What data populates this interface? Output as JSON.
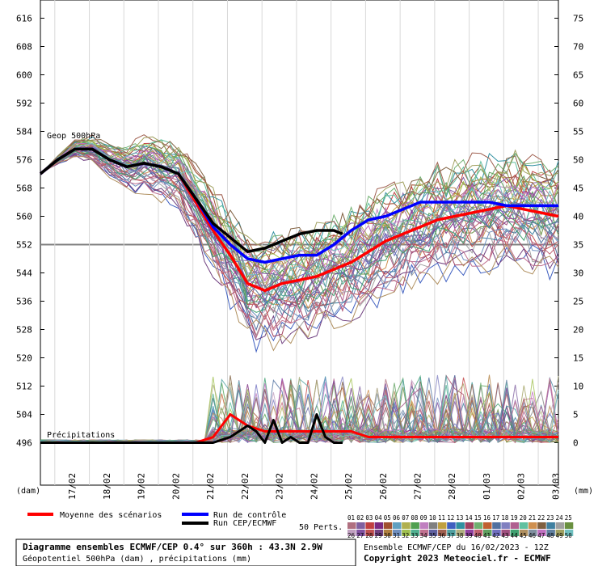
{
  "chart_data": {
    "type": "line",
    "title": "Diagramme ensembles ECMWF/CEP 0.4° sur 360h : 43.3N 2.9W",
    "subtitle": "Géopotentiel 500hPa (dam) , précipitations (mm)",
    "run_info": "Ensemble ECMWF/CEP du 16/02/2023 - 12Z",
    "copyright": "Copyright 2023 Meteociel.fr - ECMWF",
    "left_axis": {
      "unit_label": "(dam)",
      "ticks": [
        616,
        608,
        600,
        592,
        584,
        576,
        568,
        560,
        552,
        544,
        536,
        528,
        520,
        512,
        504,
        496
      ],
      "range": [
        496,
        618
      ]
    },
    "right_axis": {
      "unit_label": "(mm)",
      "ticks": [
        75,
        70,
        65,
        60,
        55,
        50,
        45,
        40,
        35,
        30,
        25,
        20,
        15,
        10,
        5,
        0
      ],
      "range": [
        0,
        77
      ]
    },
    "x_ticks": [
      "17/02",
      "18/02",
      "19/02",
      "20/02",
      "21/02",
      "22/02",
      "23/02",
      "24/02",
      "25/02",
      "26/02",
      "27/02",
      "28/02",
      "01/03",
      "02/03",
      "03/03"
    ],
    "x_range_hours": [
      0,
      360
    ],
    "panel_labels": {
      "geop": "Geop 500hPa",
      "precip": "Précipitations"
    },
    "reference_line": 552,
    "legend": {
      "mean_label": "Moyenne des scénarios",
      "control_label": "Run de contrôle",
      "oper_label": "Run CEP/ECMWF",
      "perts_label": "50 Perts.",
      "mean_color": "#ff0000",
      "control_color": "#0000ff",
      "oper_color": "#000000"
    },
    "member_numbers": [
      "01",
      "02",
      "03",
      "04",
      "05",
      "06",
      "07",
      "08",
      "09",
      "10",
      "11",
      "12",
      "13",
      "14",
      "15",
      "16",
      "17",
      "18",
      "19",
      "20",
      "21",
      "22",
      "23",
      "24",
      "25",
      "26",
      "27",
      "28",
      "29",
      "30",
      "31",
      "32",
      "33",
      "34",
      "35",
      "36",
      "37",
      "38",
      "39",
      "40",
      "41",
      "42",
      "43",
      "44",
      "45",
      "46",
      "47",
      "48",
      "49",
      "50"
    ],
    "member_colors": [
      "#b07080",
      "#8060a0",
      "#c04040",
      "#7a2a80",
      "#a05030",
      "#60a0c0",
      "#b0b050",
      "#50a050",
      "#c080c0",
      "#808080",
      "#c0a040",
      "#4060c0",
      "#3090a0",
      "#a04060",
      "#70b070",
      "#c06030",
      "#5070a0",
      "#8080c0",
      "#b06090",
      "#60c0a0",
      "#d09050",
      "#806040",
      "#4080a0",
      "#a0a0a0",
      "#6a9040",
      "#c0a0c0",
      "#8050a0",
      "#c05050",
      "#704080",
      "#b08040",
      "#7090c0",
      "#a0c050",
      "#50b090",
      "#c07090",
      "#6060a0",
      "#a06050",
      "#50a0a0",
      "#b0b080",
      "#9040a0",
      "#c06070",
      "#60a060",
      "#7070c0",
      "#a05080",
      "#40a070",
      "#b09060",
      "#8090a0",
      "#c070c0",
      "#6080a0",
      "#a0a060",
      "#70c0c0"
    ],
    "series": [
      {
        "name": "Moyenne des scénarios",
        "color": "#ff0000",
        "x": [
          0,
          12,
          24,
          36,
          48,
          60,
          72,
          84,
          96,
          108,
          120,
          132,
          144,
          156,
          168,
          180,
          192,
          204,
          216,
          228,
          240,
          252,
          264,
          276,
          288,
          300,
          312,
          324,
          336,
          348,
          360
        ],
        "y": [
          572,
          576,
          579,
          579,
          576,
          574,
          575,
          574,
          572,
          564,
          556,
          549,
          541,
          539,
          541,
          542,
          543,
          545,
          547,
          550,
          553,
          555,
          557,
          559,
          560,
          561,
          562,
          563,
          562,
          561,
          560
        ]
      },
      {
        "name": "Run de contrôle",
        "color": "#0000ff",
        "x": [
          0,
          12,
          24,
          36,
          48,
          60,
          72,
          84,
          96,
          108,
          120,
          132,
          144,
          156,
          168,
          180,
          192,
          204,
          216,
          228,
          240,
          252,
          264,
          276,
          288,
          300,
          312,
          324,
          336,
          348,
          360
        ],
        "y": [
          572,
          576,
          579,
          579,
          576,
          574,
          575,
          574,
          572,
          565,
          557,
          552,
          548,
          547,
          548,
          549,
          549,
          552,
          556,
          559,
          560,
          562,
          564,
          564,
          564,
          564,
          564,
          563,
          563,
          563,
          563
        ]
      },
      {
        "name": "Run CEP/ECMWF",
        "color": "#000000",
        "x": [
          0,
          12,
          24,
          36,
          48,
          60,
          72,
          84,
          96,
          108,
          120,
          132,
          144,
          156,
          168,
          180,
          192,
          204,
          210
        ],
        "y": [
          572,
          576,
          579,
          579,
          576,
          574,
          575,
          574,
          572,
          565,
          558,
          554,
          550,
          551,
          553,
          555,
          556,
          556,
          555
        ]
      }
    ],
    "precip_series": [
      {
        "name": "Moyenne des scénarios",
        "color": "#ff0000",
        "x": [
          0,
          24,
          48,
          72,
          96,
          108,
          120,
          132,
          144,
          156,
          168,
          180,
          192,
          204,
          216,
          228,
          240,
          252,
          264,
          276,
          288,
          300,
          312,
          324,
          336,
          348,
          360
        ],
        "y": [
          0,
          0,
          0,
          0,
          0,
          0,
          1,
          5,
          3,
          2,
          2,
          2,
          2,
          2,
          2,
          1,
          1,
          1,
          1,
          1,
          1,
          1,
          1,
          1,
          1,
          1,
          1
        ]
      },
      {
        "name": "Run CEP/ECMWF",
        "color": "#000000",
        "x": [
          0,
          24,
          48,
          72,
          96,
          108,
          120,
          132,
          144,
          150,
          156,
          162,
          168,
          174,
          180,
          186,
          192,
          198,
          204,
          210
        ],
        "y": [
          0,
          0,
          0,
          0,
          0,
          0,
          0,
          1,
          3,
          2,
          0,
          4,
          0,
          1,
          0,
          0,
          5,
          1,
          0,
          0
        ]
      }
    ]
  }
}
